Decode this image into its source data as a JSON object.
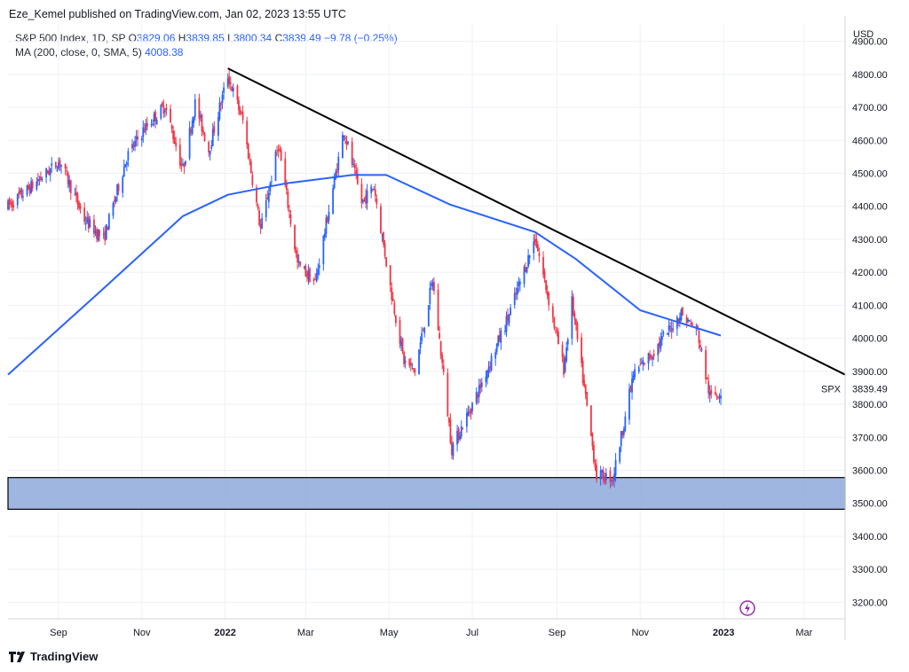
{
  "header": {
    "published": "Eze_Kemel published on TradingView.com, Jan 02, 2023 13:55 UTC"
  },
  "legend": {
    "symbol": "S&P 500 Index, 1D, SP",
    "open_label": "O",
    "open": "3829.06",
    "high_label": "H",
    "high": "3839.85",
    "low_label": "L",
    "low": "3800.34",
    "close_label": "C",
    "close": "3839.49",
    "change": "−9.78 (−0.25%)",
    "ma_label": "MA (200, close, 0, SMA, 5)",
    "ma_value": "4008.38"
  },
  "footer": {
    "brand": "TradingView"
  },
  "colors": {
    "up": "#2962ff",
    "down": "#f23645",
    "ma": "#2962ff",
    "trendline": "#000000",
    "zone_fill": "#7f9fd6",
    "grid": "#eef1f5"
  },
  "chart_data": {
    "type": "candlestick",
    "title": "S&P 500 Index, 1D, SP",
    "currency": "USD",
    "symbol_tag": "SPX",
    "last_price": "3839.49",
    "ylim": [
      3150,
      4950
    ],
    "y_ticks": [
      "4900.00",
      "4800.00",
      "4700.00",
      "4600.00",
      "4500.00",
      "4400.00",
      "4300.00",
      "4200.00",
      "4100.00",
      "4000.00",
      "3900.00",
      "3800.00",
      "3700.00",
      "3600.00",
      "3500.00",
      "3400.00",
      "3300.00",
      "3200.00"
    ],
    "x_ticks": [
      {
        "label": "Sep",
        "date": "2021-09-01",
        "bold": false
      },
      {
        "label": "Nov",
        "date": "2021-11-01",
        "bold": false
      },
      {
        "label": "2022",
        "date": "2022-01-01",
        "bold": true
      },
      {
        "label": "Mar",
        "date": "2022-03-01",
        "bold": false
      },
      {
        "label": "May",
        "date": "2022-05-01",
        "bold": false
      },
      {
        "label": "Jul",
        "date": "2022-07-01",
        "bold": false
      },
      {
        "label": "Sep",
        "date": "2022-09-01",
        "bold": false
      },
      {
        "label": "Nov",
        "date": "2022-11-01",
        "bold": false
      },
      {
        "label": "2023",
        "date": "2023-01-01",
        "bold": true
      },
      {
        "label": "Mar",
        "date": "2023-03-01",
        "bold": false
      }
    ],
    "x_range": [
      "2021-07-26",
      "2023-03-31"
    ],
    "price_path": [
      [
        "2021-07-26",
        4400
      ],
      [
        "2021-08-15",
        4470
      ],
      [
        "2021-09-02",
        4537
      ],
      [
        "2021-09-20",
        4360
      ],
      [
        "2021-10-04",
        4300
      ],
      [
        "2021-10-21",
        4550
      ],
      [
        "2021-11-02",
        4630
      ],
      [
        "2021-11-18",
        4705
      ],
      [
        "2021-12-01",
        4510
      ],
      [
        "2021-12-10",
        4712
      ],
      [
        "2021-12-20",
        4570
      ],
      [
        "2022-01-03",
        4796
      ],
      [
        "2022-01-14",
        4660
      ],
      [
        "2022-01-27",
        4330
      ],
      [
        "2022-02-09",
        4587
      ],
      [
        "2022-02-23",
        4225
      ],
      [
        "2022-03-08",
        4170
      ],
      [
        "2022-03-29",
        4631
      ],
      [
        "2022-04-11",
        4412
      ],
      [
        "2022-04-20",
        4460
      ],
      [
        "2022-05-02",
        4155
      ],
      [
        "2022-05-12",
        3930
      ],
      [
        "2022-05-20",
        3901
      ],
      [
        "2022-06-02",
        4176
      ],
      [
        "2022-06-16",
        3666
      ],
      [
        "2022-07-06",
        3845
      ],
      [
        "2022-07-28",
        4072
      ],
      [
        "2022-08-16",
        4305
      ],
      [
        "2022-09-06",
        3908
      ],
      [
        "2022-09-12",
        4110
      ],
      [
        "2022-09-30",
        3585
      ],
      [
        "2022-10-12",
        3577
      ],
      [
        "2022-10-27",
        3890
      ],
      [
        "2022-11-10",
        3956
      ],
      [
        "2022-12-01",
        4076
      ],
      [
        "2022-12-13",
        4019
      ],
      [
        "2022-12-22",
        3822
      ],
      [
        "2022-12-30",
        3839.49
      ]
    ],
    "ma_200": [
      [
        "2021-07-26",
        3890
      ],
      [
        "2021-10-01",
        4140
      ],
      [
        "2021-12-01",
        4370
      ],
      [
        "2022-01-03",
        4435
      ],
      [
        "2022-02-15",
        4470
      ],
      [
        "2022-04-04",
        4495
      ],
      [
        "2022-04-29",
        4495
      ],
      [
        "2022-06-15",
        4405
      ],
      [
        "2022-08-16",
        4322
      ],
      [
        "2022-09-15",
        4240
      ],
      [
        "2022-11-01",
        4085
      ],
      [
        "2022-12-30",
        4008.38
      ]
    ],
    "trendline": [
      [
        "2022-01-03",
        4818
      ],
      [
        "2023-03-31",
        3890
      ]
    ],
    "support_zone": [
      3482,
      3578
    ]
  }
}
